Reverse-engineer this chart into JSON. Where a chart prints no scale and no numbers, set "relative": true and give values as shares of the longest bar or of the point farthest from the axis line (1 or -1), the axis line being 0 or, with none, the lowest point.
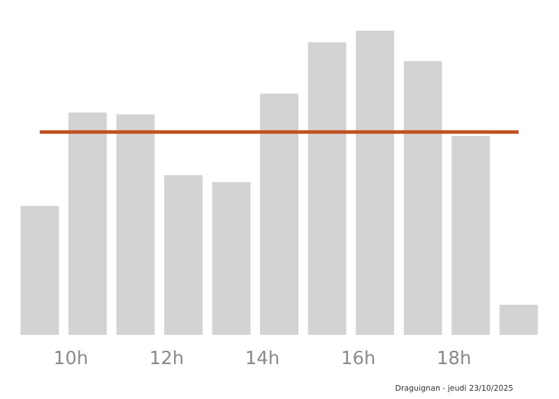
{
  "chart_data": {
    "type": "bar",
    "x": [
      9.35,
      10.35,
      11.35,
      12.35,
      13.35,
      14.35,
      15.35,
      16.35,
      17.35,
      18.35,
      19.35
    ],
    "values": [
      0.424,
      0.731,
      0.725,
      0.525,
      0.502,
      0.793,
      0.962,
      1,
      0.9,
      0.654,
      0.099
    ],
    "color": "#d3d3d3",
    "relative": true,
    "xlim": [
      8.9,
      19.9
    ],
    "xticks": [
      {
        "value": 10,
        "label": "10h"
      },
      {
        "value": 12,
        "label": "12h"
      },
      {
        "value": 14,
        "label": "14h"
      },
      {
        "value": 16,
        "label": "16h"
      },
      {
        "value": 18,
        "label": "18h"
      }
    ],
    "ref_lines": [
      {
        "axis": "y",
        "value": 0.667,
        "color": "#c0501f"
      }
    ],
    "annotations": [
      "Draguignan - jeudi 23/10/2025"
    ]
  }
}
